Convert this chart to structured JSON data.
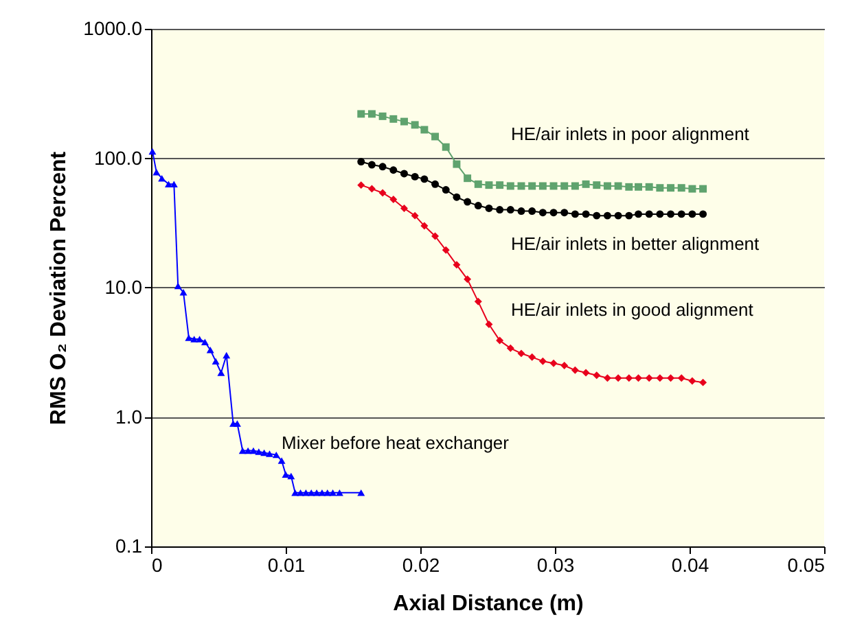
{
  "chart_data": {
    "type": "line",
    "xlabel": "Axial Distance (m)",
    "ylabel": "RMS O₂ Deviation Percent",
    "log": "y",
    "grid": "y",
    "xlim": [
      0,
      0.05
    ],
    "xticks": [
      0,
      0.01,
      0.02,
      0.03,
      0.04,
      0.05
    ],
    "ylim": [
      0.1,
      1000
    ],
    "yticks": [
      {
        "value": 0.1,
        "label": "0.1"
      },
      {
        "value": 1,
        "label": "1.0"
      },
      {
        "value": 10,
        "label": "10.0"
      },
      {
        "value": 100,
        "label": "100.0"
      },
      {
        "value": 1000,
        "label": "1000.0"
      }
    ],
    "series": [
      {
        "color": "#0000ff",
        "marker": "triangle",
        "x": [
          0.0001,
          0.0004,
          0.0008,
          0.0013,
          0.0017,
          0.002,
          0.0024,
          0.0028,
          0.0032,
          0.0036,
          0.004,
          0.0044,
          0.0048,
          0.0052,
          0.0056,
          0.0061,
          0.0064,
          0.0068,
          0.0072,
          0.0076,
          0.008,
          0.0084,
          0.0088,
          0.0093,
          0.0097,
          0.01,
          0.0104,
          0.0107,
          0.0111,
          0.0115,
          0.0119,
          0.0123,
          0.0127,
          0.0131,
          0.0135,
          0.014,
          0.0156
        ],
        "values": [
          113,
          78,
          70,
          63,
          63,
          10.3,
          9.2,
          4.1,
          4.0,
          4.0,
          3.8,
          3.3,
          2.7,
          2.2,
          3.0,
          0.89,
          0.89,
          0.55,
          0.55,
          0.55,
          0.54,
          0.53,
          0.52,
          0.51,
          0.46,
          0.36,
          0.35,
          0.26,
          0.26,
          0.26,
          0.26,
          0.26,
          0.26,
          0.26,
          0.26,
          0.26,
          0.26
        ]
      },
      {
        "color": "#5fa36e",
        "marker": "square",
        "x": [
          0.0156,
          0.0164,
          0.0172,
          0.018,
          0.0188,
          0.0196,
          0.0203,
          0.0211,
          0.0219,
          0.0227,
          0.0235,
          0.0243,
          0.0251,
          0.0259,
          0.0267,
          0.0275,
          0.0283,
          0.0291,
          0.0299,
          0.0307,
          0.0315,
          0.0323,
          0.0331,
          0.0339,
          0.0347,
          0.0355,
          0.0362,
          0.037,
          0.0378,
          0.0386,
          0.0394,
          0.0402,
          0.041
        ],
        "values": [
          220,
          220,
          211,
          201,
          192,
          181,
          166,
          147,
          122,
          90,
          70,
          63,
          62,
          62,
          61,
          61,
          61,
          61,
          61,
          61,
          61,
          63,
          62,
          61,
          61,
          60,
          60,
          60,
          59,
          59,
          59,
          58,
          58
        ]
      },
      {
        "color": "#000000",
        "marker": "circle",
        "x": [
          0.0156,
          0.0164,
          0.0172,
          0.018,
          0.0188,
          0.0196,
          0.0203,
          0.0211,
          0.0219,
          0.0227,
          0.0235,
          0.0243,
          0.0251,
          0.0259,
          0.0267,
          0.0275,
          0.0283,
          0.0291,
          0.0299,
          0.0307,
          0.0315,
          0.0323,
          0.0331,
          0.0339,
          0.0347,
          0.0355,
          0.0362,
          0.037,
          0.0378,
          0.0386,
          0.0394,
          0.0402,
          0.041
        ],
        "values": [
          94,
          89,
          86,
          81,
          76,
          72,
          69,
          63,
          57,
          50,
          46,
          43,
          41,
          40,
          40,
          39,
          39,
          38,
          38,
          38,
          37,
          37,
          36,
          36,
          36,
          36,
          37,
          37,
          37,
          37,
          37,
          37,
          37
        ]
      },
      {
        "color": "#e8001c",
        "marker": "diamond",
        "x": [
          0.0156,
          0.0164,
          0.0172,
          0.018,
          0.0188,
          0.0196,
          0.0203,
          0.0211,
          0.0219,
          0.0227,
          0.0235,
          0.0243,
          0.0251,
          0.0259,
          0.0267,
          0.0275,
          0.0283,
          0.0291,
          0.0299,
          0.0307,
          0.0315,
          0.0323,
          0.0331,
          0.0339,
          0.0347,
          0.0355,
          0.0362,
          0.037,
          0.0378,
          0.0386,
          0.0394,
          0.0402,
          0.041
        ],
        "values": [
          62,
          58,
          54,
          48,
          41,
          36,
          30,
          25,
          19.5,
          15,
          11.6,
          7.8,
          5.2,
          3.9,
          3.4,
          3.1,
          2.9,
          2.7,
          2.6,
          2.5,
          2.3,
          2.2,
          2.1,
          2.0,
          2.0,
          2.0,
          2.0,
          2.0,
          2.0,
          2.0,
          2.0,
          1.9,
          1.85
        ]
      }
    ],
    "annotations": [
      "HE/air inlets in poor alignment",
      "HE/air inlets in better alignment",
      "HE/air inlets in good alignment",
      "Mixer before heat exchanger"
    ]
  }
}
